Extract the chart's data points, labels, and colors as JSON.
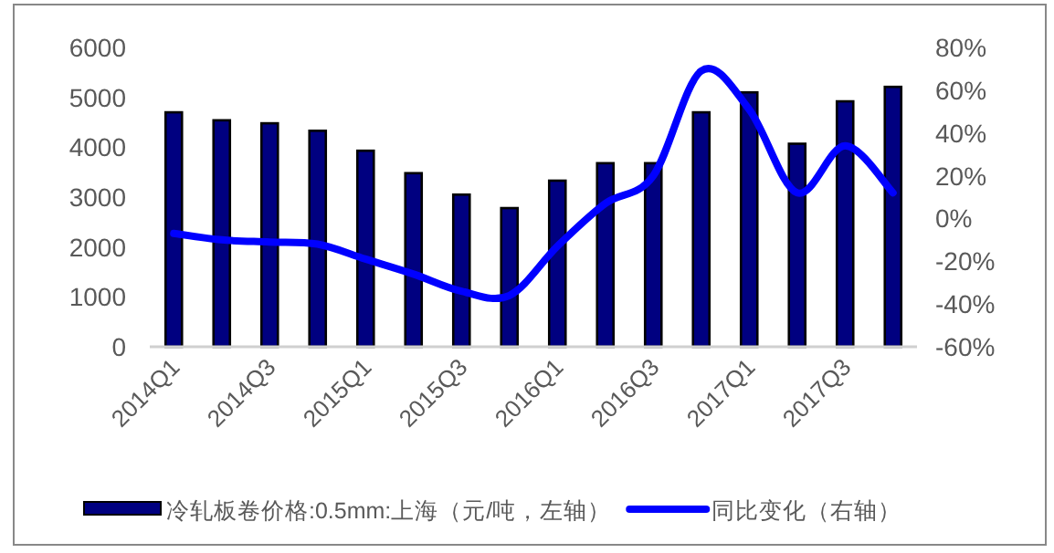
{
  "chart_data": {
    "type": "bar",
    "categories": [
      "2014Q1",
      null,
      "2014Q3",
      null,
      "2015Q1",
      null,
      "2015Q3",
      null,
      "2016Q1",
      null,
      "2016Q3",
      null,
      "2017Q1",
      null,
      "2017Q3",
      null
    ],
    "series": [
      {
        "name": "冷轧板卷价格:0.5mm:上海（元/吨，左轴）",
        "color": "#000080",
        "values": [
          4700,
          4540,
          4480,
          4330,
          3930,
          3480,
          3050,
          2780,
          3330,
          3680,
          3680,
          4700,
          5100,
          4070,
          4920,
          5210
        ]
      },
      {
        "name": "同比变化（右轴）",
        "type": "line",
        "axis": "y2",
        "color": "#0000ff",
        "values": [
          -7,
          -10,
          -11,
          -12,
          -19,
          -26,
          -34,
          -36,
          -13,
          7,
          20,
          69,
          51,
          12,
          34,
          12
        ]
      }
    ],
    "ylim": [
      0,
      6000
    ],
    "yticks": [
      0,
      1000,
      2000,
      3000,
      4000,
      5000,
      6000
    ],
    "y2lim": [
      -60,
      80
    ],
    "y2ticks": [
      {
        "value": -60,
        "label": "-60%"
      },
      {
        "value": -40,
        "label": "-40%"
      },
      {
        "value": -20,
        "label": "-20%"
      },
      {
        "value": 0,
        "label": "0%"
      },
      {
        "value": 20,
        "label": "20%"
      },
      {
        "value": 40,
        "label": "40%"
      },
      {
        "value": 60,
        "label": "60%"
      },
      {
        "value": 80,
        "label": "80%"
      }
    ],
    "legend": "bottom"
  }
}
